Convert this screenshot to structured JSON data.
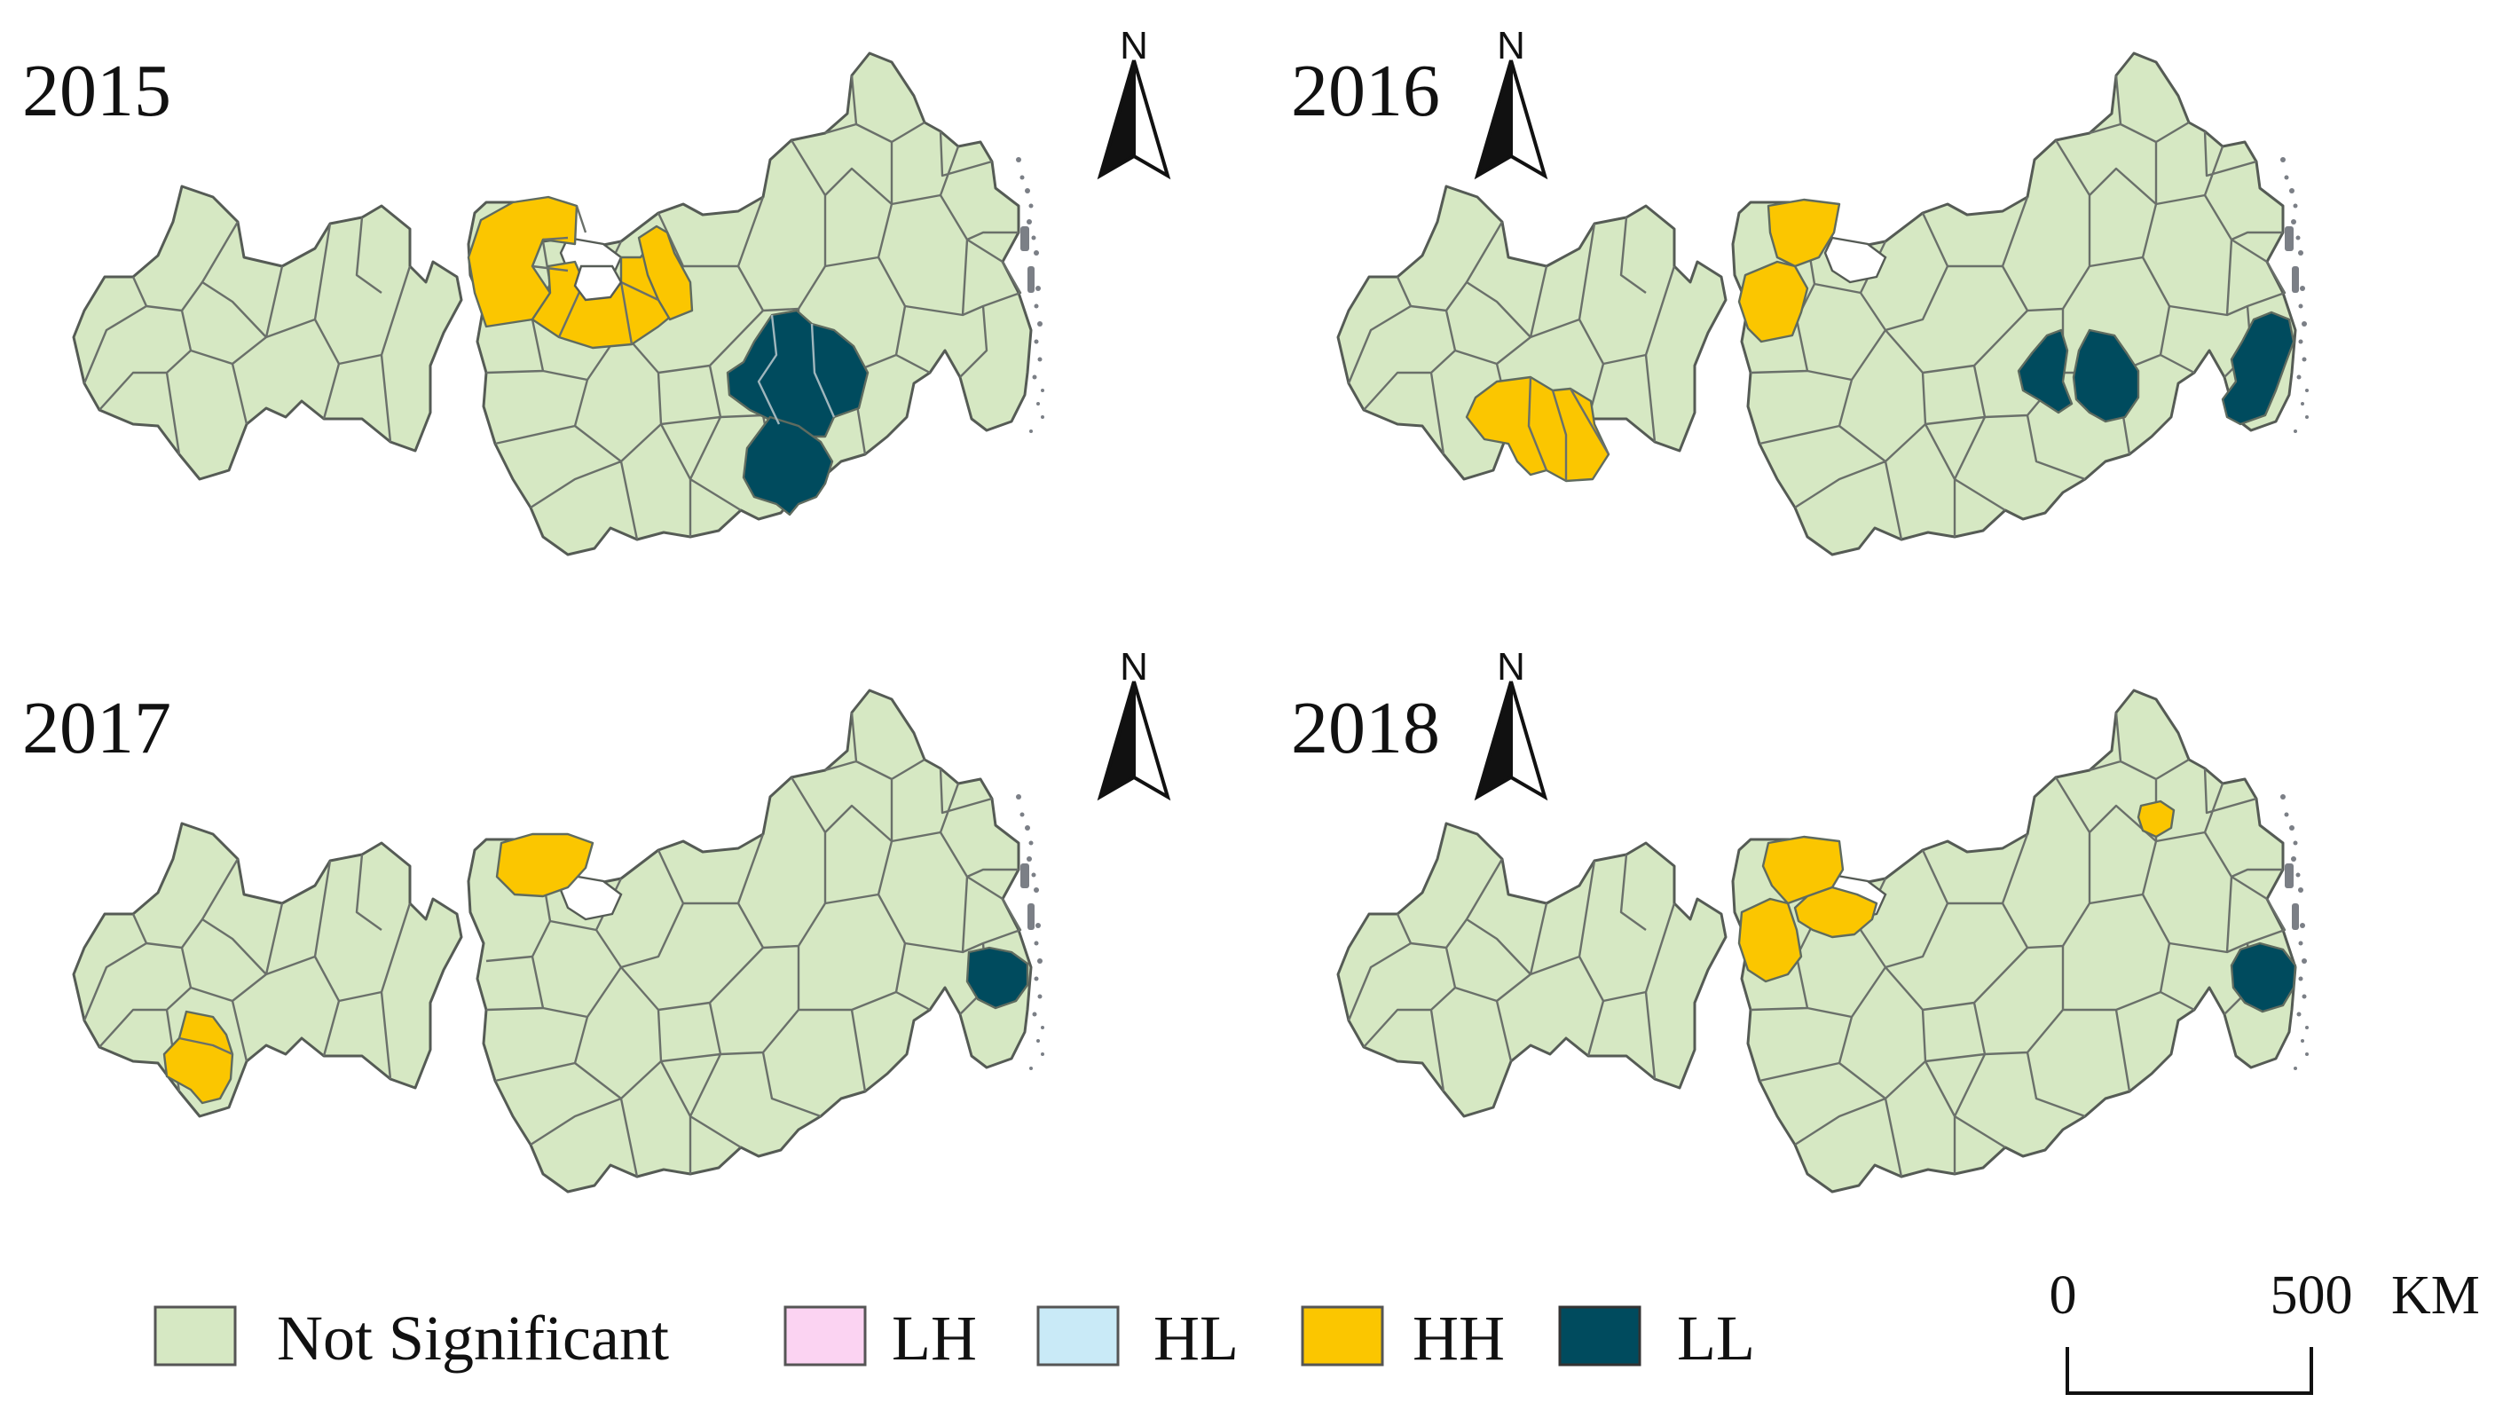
{
  "colors": {
    "not_significant": "#d6e8c3",
    "LH": "#fbd3f2",
    "HL": "#c9eaf7",
    "HH": "#fbc600",
    "LL": "#004b5e",
    "boundary": "#555b55",
    "island": "#7b7f86"
  },
  "panels": [
    {
      "year": "2015",
      "HH": [
        "north-west-cluster",
        "central-east-cluster"
      ],
      "LL": [
        "east-central-block",
        "south-east-block"
      ]
    },
    {
      "year": "2016",
      "HH": [
        "north-west-block",
        "west-lower-block",
        "southwest-cluster"
      ],
      "LL": [
        "east-central-pair",
        "coastal-east"
      ]
    },
    {
      "year": "2017",
      "HH": [
        "north-west-top",
        "southwest-single"
      ],
      "LL": [
        "coastal-east-small"
      ]
    },
    {
      "year": "2018",
      "HH": [
        "north-west-pair",
        "north-small"
      ],
      "LL": [
        "coastal-east-medium"
      ]
    }
  ],
  "north_arrow": {
    "label": "N"
  },
  "legend": {
    "items": [
      {
        "key": "not_significant",
        "label": "Not Significant"
      },
      {
        "key": "LH",
        "label": "LH"
      },
      {
        "key": "HL",
        "label": "HL"
      },
      {
        "key": "HH",
        "label": "HH"
      },
      {
        "key": "LL",
        "label": "LL"
      }
    ]
  },
  "scale_bar": {
    "start": "0",
    "end": "500",
    "unit": "KM"
  }
}
